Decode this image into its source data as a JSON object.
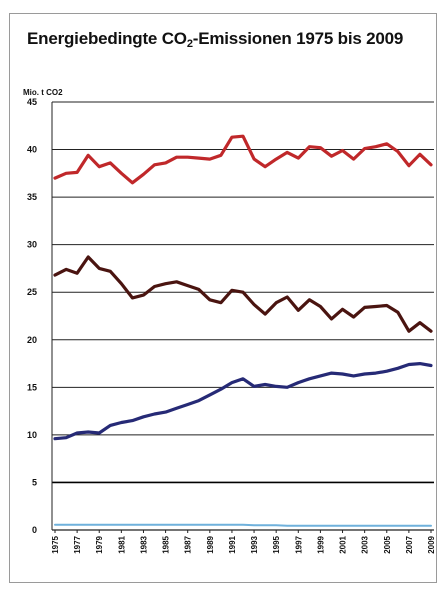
{
  "chart_data": {
    "type": "line",
    "title_main": "Energiebedingte CO",
    "title_sub": "2",
    "title_rest": "-Emissionen 1975 bis 2009",
    "ylabel": "Mio. t CO2",
    "xlabel": "",
    "ylim": [
      0,
      45
    ],
    "yticks": [
      "0",
      "5",
      "10",
      "15",
      "20",
      "25",
      "30",
      "35",
      "40",
      "45"
    ],
    "x": [
      1975,
      1976,
      1977,
      1978,
      1979,
      1980,
      1981,
      1982,
      1983,
      1984,
      1985,
      1986,
      1987,
      1988,
      1989,
      1990,
      1991,
      1992,
      1993,
      1994,
      1995,
      1996,
      1997,
      1998,
      1999,
      2000,
      2001,
      2002,
      2003,
      2004,
      2005,
      2006,
      2007,
      2008,
      2009
    ],
    "xtick_labels": [
      "1975",
      "1977",
      "1979",
      "1981",
      "1983",
      "1985",
      "1987",
      "1989",
      "1991",
      "1993",
      "1995",
      "1997",
      "1999",
      "2001",
      "2003",
      "2005",
      "2007",
      "2009"
    ],
    "grid": true,
    "series": [
      {
        "color": "#c0282a",
        "values": [
          37.0,
          37.5,
          37.6,
          39.4,
          38.2,
          38.6,
          37.5,
          36.5,
          37.4,
          38.4,
          38.6,
          39.2,
          39.2,
          39.1,
          39.0,
          39.4,
          41.3,
          41.4,
          39.0,
          38.2,
          39.0,
          39.7,
          39.1,
          40.3,
          40.2,
          39.3,
          39.9,
          39.0,
          40.1,
          40.3,
          40.6,
          39.8,
          38.3,
          39.5,
          38.4
        ]
      },
      {
        "color": "#4a1410",
        "values": [
          26.8,
          27.4,
          27.0,
          28.7,
          27.5,
          27.2,
          25.9,
          24.4,
          24.7,
          25.6,
          25.9,
          26.1,
          25.7,
          25.3,
          24.2,
          23.9,
          25.2,
          25.0,
          23.7,
          22.7,
          23.9,
          24.5,
          23.1,
          24.2,
          23.5,
          22.2,
          23.2,
          22.4,
          23.4,
          23.5,
          23.6,
          22.9,
          20.9,
          21.8,
          20.9
        ]
      },
      {
        "color": "#262a76",
        "values": [
          9.6,
          9.7,
          10.2,
          10.3,
          10.2,
          11.0,
          11.3,
          11.5,
          11.9,
          12.2,
          12.4,
          12.8,
          13.2,
          13.6,
          14.2,
          14.8,
          15.5,
          15.9,
          15.1,
          15.3,
          15.1,
          15.0,
          15.5,
          15.9,
          16.2,
          16.5,
          16.4,
          16.2,
          16.4,
          16.5,
          16.7,
          17.0,
          17.4,
          17.5,
          17.3
        ]
      },
      {
        "color": "#6fb1dc",
        "values": [
          0.55,
          0.55,
          0.55,
          0.55,
          0.55,
          0.55,
          0.55,
          0.55,
          0.55,
          0.55,
          0.55,
          0.55,
          0.55,
          0.55,
          0.55,
          0.55,
          0.55,
          0.55,
          0.5,
          0.5,
          0.5,
          0.45,
          0.45,
          0.45,
          0.45,
          0.45,
          0.45,
          0.45,
          0.45,
          0.45,
          0.45,
          0.45,
          0.45,
          0.45,
          0.45
        ]
      }
    ]
  }
}
